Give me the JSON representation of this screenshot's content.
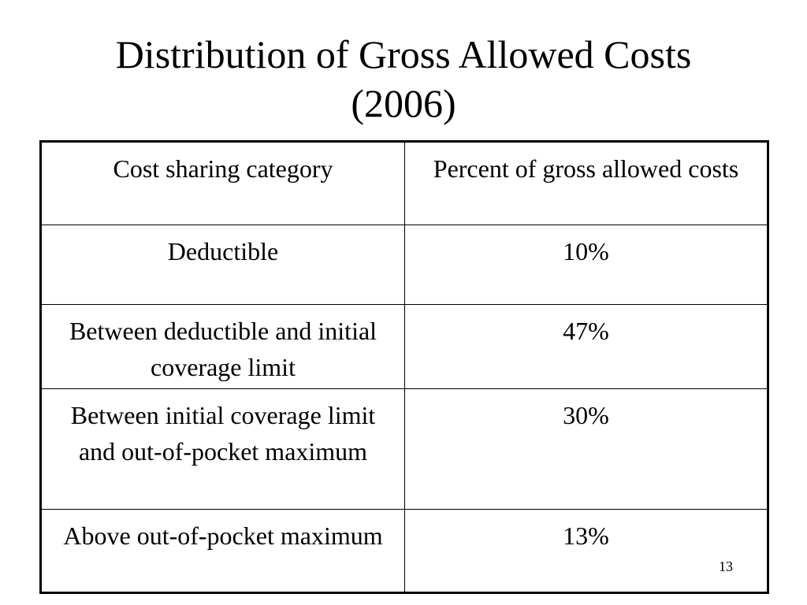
{
  "slide": {
    "title_line_1": "Distribution of Gross Allowed Costs",
    "title_line_2": "(2006)",
    "page_number": "13"
  },
  "table": {
    "headers": [
      "Cost sharing category",
      "Percent of gross allowed costs"
    ],
    "rows": [
      {
        "category": "Deductible",
        "percent": "10%"
      },
      {
        "category": "Between deductible and initial coverage limit",
        "percent": "47%"
      },
      {
        "category": "Between initial coverage limit and out-of-pocket maximum",
        "percent": "30%"
      },
      {
        "category": "Above out-of-pocket maximum",
        "percent": "13%"
      }
    ]
  }
}
